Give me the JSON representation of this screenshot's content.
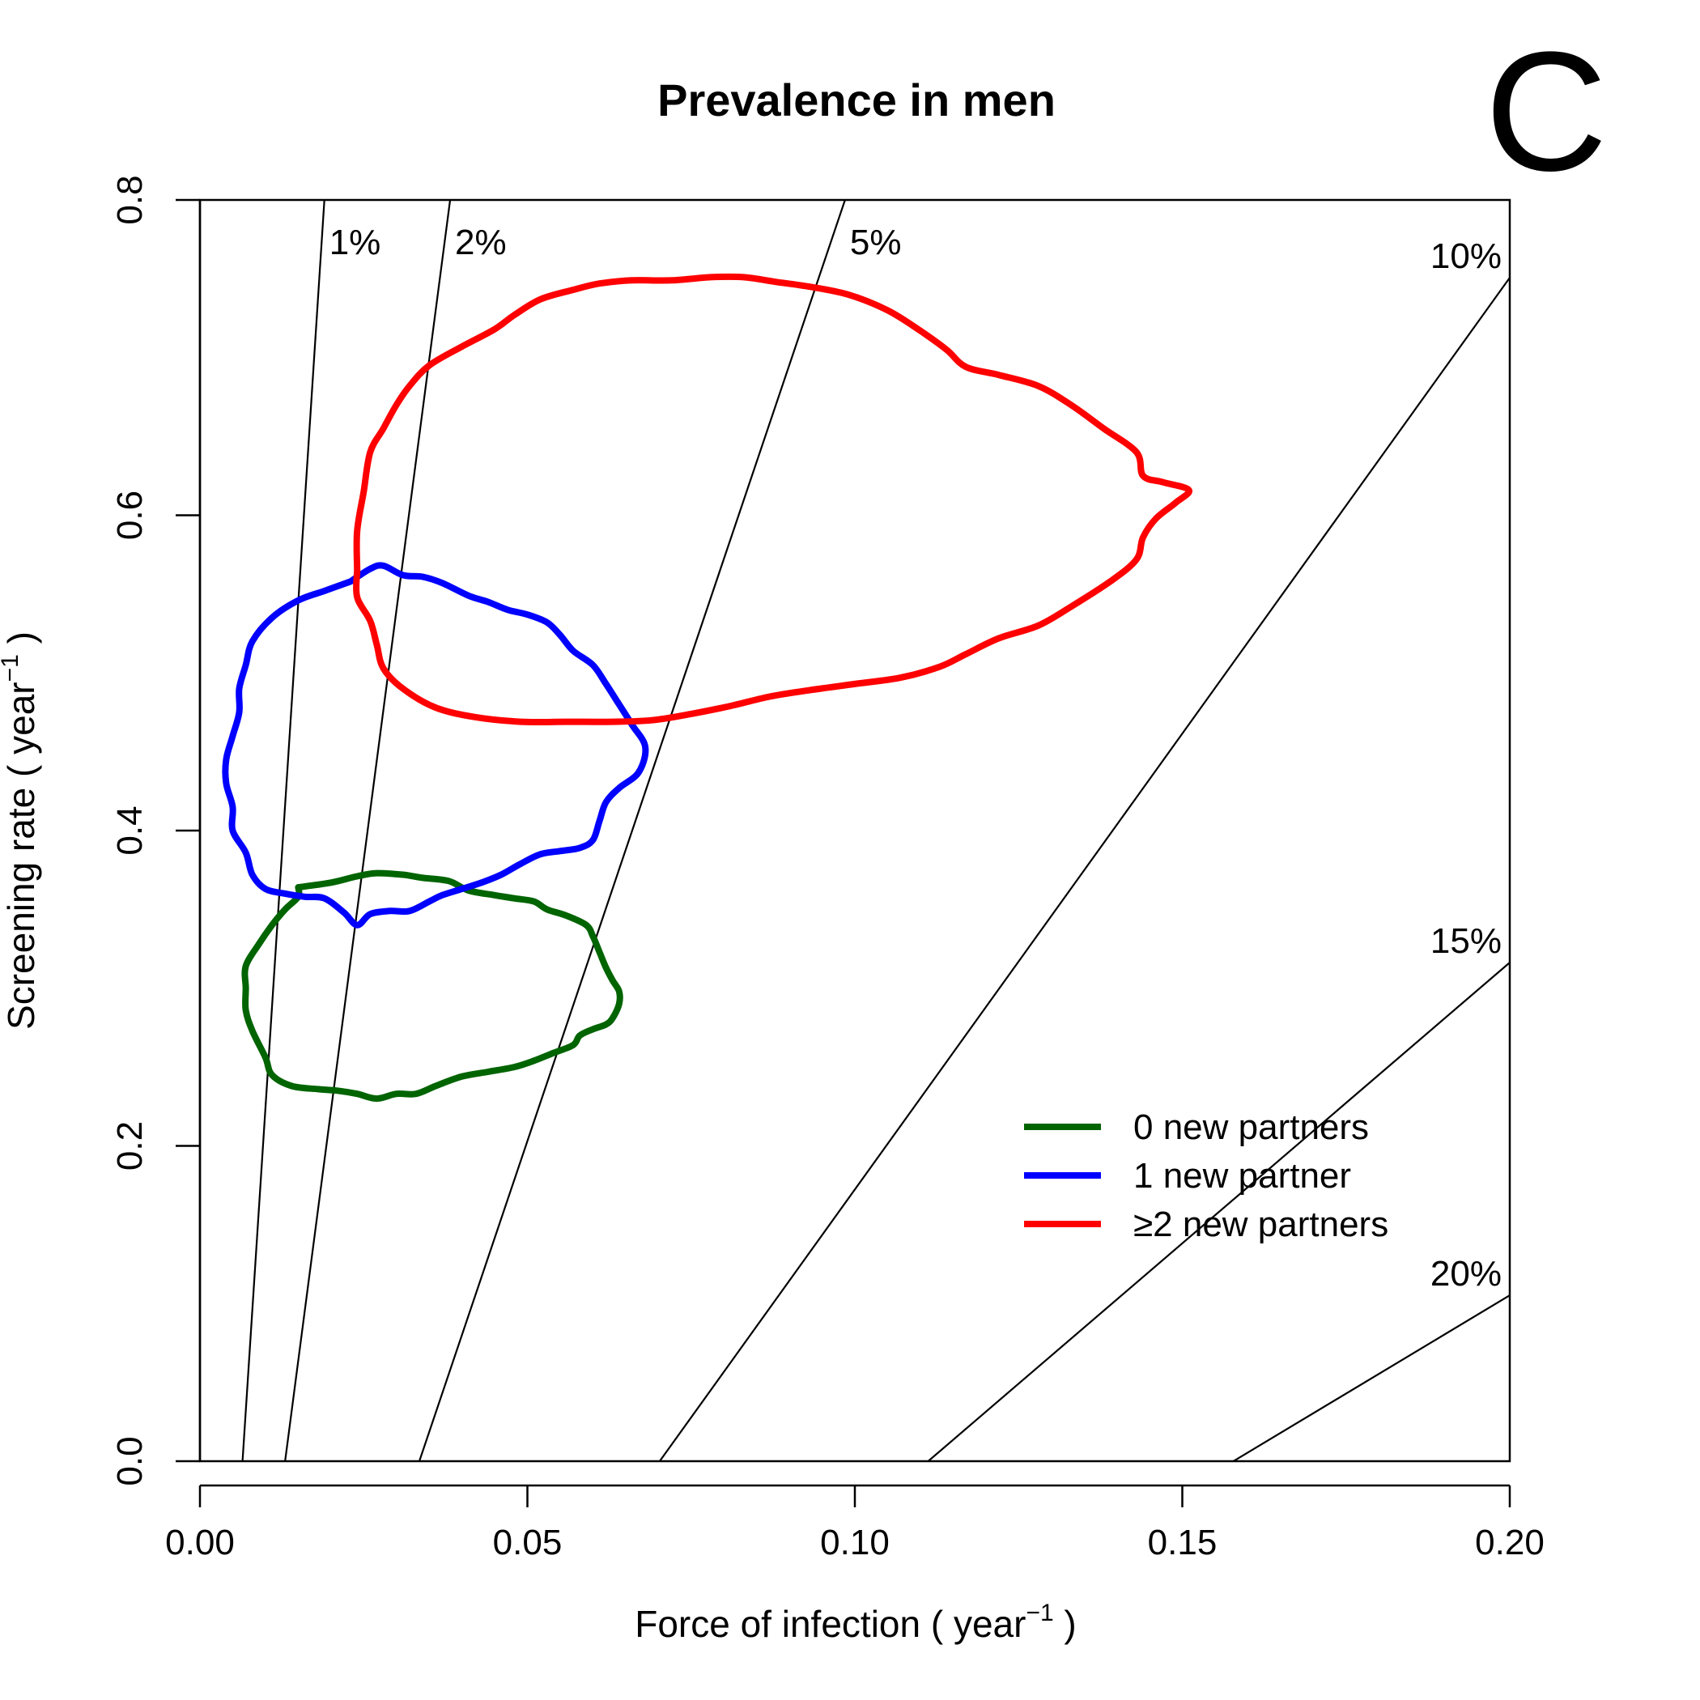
{
  "panel_letter": "C",
  "chart_data": {
    "type": "line",
    "title": "Prevalence in men",
    "xlabel": {
      "text": "Force of infection ( year",
      "sup": "−1",
      "close": " )"
    },
    "ylabel": {
      "text": "Screening rate ( year",
      "sup": "−1",
      "close": " )"
    },
    "xlim": [
      0,
      0.2
    ],
    "ylim": [
      0,
      0.8
    ],
    "x_ticks": [
      0.0,
      0.05,
      0.1,
      0.15,
      0.2
    ],
    "x_tick_labels": [
      "0.00",
      "0.05",
      "0.10",
      "0.15",
      "0.20"
    ],
    "y_ticks": [
      0.0,
      0.2,
      0.4,
      0.6,
      0.8
    ],
    "y_tick_labels": [
      "0.0",
      "0.2",
      "0.4",
      "0.6",
      "0.8"
    ],
    "grid": false,
    "legend_position": "bottom-right",
    "contour_lines": [
      {
        "label": "1%",
        "prevalence": 0.01,
        "from": [
          0.0065,
          0.0
        ],
        "to": [
          0.019,
          0.8
        ]
      },
      {
        "label": "2%",
        "prevalence": 0.02,
        "from": [
          0.013,
          0.0
        ],
        "to": [
          0.0382,
          0.8
        ]
      },
      {
        "label": "5%",
        "prevalence": 0.05,
        "from": [
          0.0335,
          0.0
        ],
        "to": [
          0.0985,
          0.8
        ]
      },
      {
        "label": "10%",
        "prevalence": 0.1,
        "from": [
          0.0702,
          0.0
        ],
        "to": [
          0.2,
          0.7507
        ]
      },
      {
        "label": "15%",
        "prevalence": 0.15,
        "from": [
          0.1112,
          0.0
        ],
        "to": [
          0.2,
          0.3163
        ]
      },
      {
        "label": "20%",
        "prevalence": 0.2,
        "from": [
          0.1578,
          0.0
        ],
        "to": [
          0.2,
          0.1052
        ]
      }
    ],
    "series": [
      {
        "name": "0 new partners",
        "color": "#006400",
        "points": [
          [
            0.015,
            0.364
          ],
          [
            0.02,
            0.367
          ],
          [
            0.024,
            0.371
          ],
          [
            0.027,
            0.373
          ],
          [
            0.031,
            0.372
          ],
          [
            0.034,
            0.37
          ],
          [
            0.038,
            0.368
          ],
          [
            0.041,
            0.362
          ],
          [
            0.045,
            0.359
          ],
          [
            0.048,
            0.357
          ],
          [
            0.051,
            0.355
          ],
          [
            0.053,
            0.35
          ],
          [
            0.056,
            0.346
          ],
          [
            0.059,
            0.34
          ],
          [
            0.06,
            0.333
          ],
          [
            0.061,
            0.323
          ],
          [
            0.062,
            0.313
          ],
          [
            0.063,
            0.305
          ],
          [
            0.064,
            0.298
          ],
          [
            0.064,
            0.29
          ],
          [
            0.063,
            0.281
          ],
          [
            0.062,
            0.277
          ],
          [
            0.06,
            0.274
          ],
          [
            0.058,
            0.27
          ],
          [
            0.057,
            0.264
          ],
          [
            0.054,
            0.259
          ],
          [
            0.051,
            0.254
          ],
          [
            0.048,
            0.25
          ],
          [
            0.044,
            0.247
          ],
          [
            0.04,
            0.244
          ],
          [
            0.036,
            0.238
          ],
          [
            0.033,
            0.233
          ],
          [
            0.03,
            0.233
          ],
          [
            0.027,
            0.23
          ],
          [
            0.024,
            0.233
          ],
          [
            0.021,
            0.235
          ],
          [
            0.018,
            0.236
          ],
          [
            0.014,
            0.238
          ],
          [
            0.011,
            0.245
          ],
          [
            0.01,
            0.256
          ],
          [
            0.008,
            0.273
          ],
          [
            0.007,
            0.286
          ],
          [
            0.007,
            0.3
          ],
          [
            0.007,
            0.314
          ],
          [
            0.009,
            0.328
          ],
          [
            0.011,
            0.34
          ],
          [
            0.013,
            0.35
          ],
          [
            0.015,
            0.358
          ],
          [
            0.015,
            0.364
          ]
        ]
      },
      {
        "name": "1 new partner",
        "color": "#0000ff",
        "points": [
          [
            0.023,
            0.558
          ],
          [
            0.026,
            0.566
          ],
          [
            0.028,
            0.568
          ],
          [
            0.031,
            0.562
          ],
          [
            0.034,
            0.561
          ],
          [
            0.037,
            0.557
          ],
          [
            0.041,
            0.549
          ],
          [
            0.044,
            0.545
          ],
          [
            0.047,
            0.54
          ],
          [
            0.05,
            0.537
          ],
          [
            0.053,
            0.532
          ],
          [
            0.055,
            0.524
          ],
          [
            0.057,
            0.514
          ],
          [
            0.06,
            0.505
          ],
          [
            0.062,
            0.493
          ],
          [
            0.064,
            0.48
          ],
          [
            0.066,
            0.467
          ],
          [
            0.068,
            0.453
          ],
          [
            0.067,
            0.437
          ],
          [
            0.064,
            0.427
          ],
          [
            0.062,
            0.418
          ],
          [
            0.061,
            0.406
          ],
          [
            0.06,
            0.394
          ],
          [
            0.058,
            0.389
          ],
          [
            0.055,
            0.387
          ],
          [
            0.052,
            0.385
          ],
          [
            0.049,
            0.379
          ],
          [
            0.046,
            0.372
          ],
          [
            0.043,
            0.367
          ],
          [
            0.04,
            0.363
          ],
          [
            0.037,
            0.359
          ],
          [
            0.035,
            0.355
          ],
          [
            0.032,
            0.349
          ],
          [
            0.029,
            0.349
          ],
          [
            0.026,
            0.347
          ],
          [
            0.024,
            0.34
          ],
          [
            0.022,
            0.348
          ],
          [
            0.019,
            0.357
          ],
          [
            0.016,
            0.358
          ],
          [
            0.013,
            0.36
          ],
          [
            0.01,
            0.363
          ],
          [
            0.008,
            0.372
          ],
          [
            0.007,
            0.386
          ],
          [
            0.005,
            0.4
          ],
          [
            0.005,
            0.415
          ],
          [
            0.004,
            0.43
          ],
          [
            0.004,
            0.445
          ],
          [
            0.005,
            0.46
          ],
          [
            0.006,
            0.475
          ],
          [
            0.006,
            0.49
          ],
          [
            0.007,
            0.505
          ],
          [
            0.008,
            0.52
          ],
          [
            0.011,
            0.535
          ],
          [
            0.015,
            0.546
          ],
          [
            0.019,
            0.552
          ],
          [
            0.023,
            0.558
          ]
        ]
      },
      {
        "name": "≥2 new partners",
        "color": "#ff0000",
        "points": [
          [
            0.024,
            0.565
          ],
          [
            0.024,
            0.59
          ],
          [
            0.025,
            0.615
          ],
          [
            0.026,
            0.64
          ],
          [
            0.028,
            0.655
          ],
          [
            0.03,
            0.67
          ],
          [
            0.032,
            0.682
          ],
          [
            0.035,
            0.695
          ],
          [
            0.04,
            0.707
          ],
          [
            0.045,
            0.718
          ],
          [
            0.048,
            0.727
          ],
          [
            0.052,
            0.737
          ],
          [
            0.057,
            0.743
          ],
          [
            0.061,
            0.747
          ],
          [
            0.066,
            0.749
          ],
          [
            0.072,
            0.749
          ],
          [
            0.078,
            0.751
          ],
          [
            0.083,
            0.751
          ],
          [
            0.088,
            0.748
          ],
          [
            0.093,
            0.745
          ],
          [
            0.099,
            0.74
          ],
          [
            0.105,
            0.73
          ],
          [
            0.11,
            0.717
          ],
          [
            0.114,
            0.705
          ],
          [
            0.117,
            0.694
          ],
          [
            0.122,
            0.689
          ],
          [
            0.128,
            0.682
          ],
          [
            0.133,
            0.67
          ],
          [
            0.138,
            0.655
          ],
          [
            0.143,
            0.64
          ],
          [
            0.144,
            0.625
          ],
          [
            0.147,
            0.621
          ],
          [
            0.151,
            0.616
          ],
          [
            0.149,
            0.608
          ],
          [
            0.146,
            0.598
          ],
          [
            0.144,
            0.586
          ],
          [
            0.143,
            0.572
          ],
          [
            0.139,
            0.558
          ],
          [
            0.133,
            0.542
          ],
          [
            0.128,
            0.53
          ],
          [
            0.122,
            0.522
          ],
          [
            0.117,
            0.512
          ],
          [
            0.113,
            0.504
          ],
          [
            0.107,
            0.497
          ],
          [
            0.1,
            0.493
          ],
          [
            0.093,
            0.489
          ],
          [
            0.087,
            0.485
          ],
          [
            0.081,
            0.479
          ],
          [
            0.075,
            0.474
          ],
          [
            0.069,
            0.47
          ],
          [
            0.063,
            0.469
          ],
          [
            0.056,
            0.469
          ],
          [
            0.049,
            0.469
          ],
          [
            0.042,
            0.472
          ],
          [
            0.036,
            0.478
          ],
          [
            0.031,
            0.49
          ],
          [
            0.028,
            0.503
          ],
          [
            0.027,
            0.518
          ],
          [
            0.026,
            0.533
          ],
          [
            0.024,
            0.548
          ],
          [
            0.024,
            0.565
          ]
        ]
      }
    ]
  }
}
